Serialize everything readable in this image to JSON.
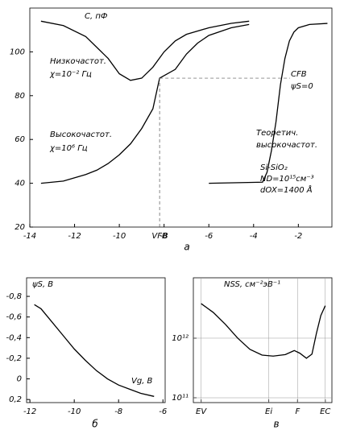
{
  "chart_data": [
    {
      "type": "line",
      "panel_label": "а",
      "y_label": "C, пФ",
      "xlim": [
        -14,
        -0.5
      ],
      "ylim": [
        20,
        120
      ],
      "xticks": [
        -14,
        -12,
        -10,
        -8,
        -6,
        -4,
        -2
      ],
      "yticks": [
        20,
        40,
        60,
        80,
        100
      ],
      "annotations": [
        "Низкочастот.",
        "χ=10⁻² Гц",
        "Высокочастот.",
        "χ=10⁶ Гц",
        "Теоретич.",
        "высокочастот.",
        "Si-SiO₂",
        "ND=10¹⁵см⁻³",
        "dOX=1400 Å"
      ],
      "flat_band": {
        "x": -8.2,
        "y": 88,
        "x_label": "VFB",
        "y_label": "CFB",
        "note": "ψS=0"
      },
      "series": [
        {
          "color": "#000000",
          "x": [
            -13.5,
            -12.5,
            -11.5,
            -10.5,
            -10,
            -9.5,
            -9,
            -8.5,
            -8,
            -7.5,
            -7,
            -6,
            -5,
            -4.2
          ],
          "values": [
            114,
            112,
            107,
            97,
            90,
            87,
            88,
            93,
            100,
            105,
            108,
            111,
            113,
            114
          ]
        },
        {
          "color": "#000000",
          "x": [
            -13.5,
            -12.5,
            -11.5,
            -11,
            -10.5,
            -10,
            -9.5,
            -9,
            -8.5,
            -8.2,
            -7.5,
            -7,
            -6.5,
            -6,
            -5,
            -4.2
          ],
          "values": [
            40,
            41,
            44,
            46,
            49,
            53,
            58,
            65,
            74,
            88,
            92,
            99,
            104,
            107.5,
            111,
            112.5
          ]
        },
        {
          "color": "#000000",
          "x": [
            -6,
            -3.6,
            -3.4,
            -3.2,
            -3,
            -2.8,
            -2.6,
            -2.4,
            -2.2,
            -2,
            -1.5,
            -0.7
          ],
          "values": [
            40,
            40.5,
            45,
            55,
            68,
            85,
            97,
            105,
            109,
            111,
            112.5,
            113
          ]
        }
      ]
    },
    {
      "type": "line",
      "panel_label": "б",
      "y_label": "ψS, В",
      "x_label": "Vg, В",
      "xlim": [
        -12.15,
        -5.9
      ],
      "ylim": [
        0.23,
        -0.98
      ],
      "xticks": [
        -12,
        -10,
        -8,
        -6
      ],
      "yticks": [
        {
          "value": -0.8,
          "label": "-0,8"
        },
        {
          "value": -0.6,
          "label": "-0,6"
        },
        {
          "value": -0.4,
          "label": "-0,4"
        },
        {
          "value": -0.2,
          "label": "-0,2"
        },
        0,
        {
          "value": 0.2,
          "label": "0,2"
        }
      ],
      "series": [
        {
          "color": "#000000",
          "x": [
            -11.8,
            -11.5,
            -11,
            -10.5,
            -10,
            -9.5,
            -9,
            -8.5,
            -8,
            -7.5,
            -7,
            -6.4
          ],
          "values": [
            -0.72,
            -0.68,
            -0.55,
            -0.42,
            -0.29,
            -0.18,
            -0.08,
            0.0,
            0.06,
            0.1,
            0.14,
            0.17
          ]
        }
      ]
    },
    {
      "type": "line",
      "panel_label": "в",
      "y_label": "NSS, см⁻²эВ⁻¹",
      "log_y": true,
      "grid": true,
      "xlim": [
        -0.07,
        1.18
      ],
      "ylim": [
        83000000000,
        10300000000000
      ],
      "xticks": [
        {
          "value": 0,
          "label": "EV"
        },
        {
          "value": 0.61,
          "label": "Ei"
        },
        {
          "value": 0.87,
          "label": "F"
        },
        {
          "value": 1.12,
          "label": "EC"
        }
      ],
      "yticks": [
        {
          "value": 100000000000,
          "label": "10¹¹"
        },
        {
          "value": 1000000000000,
          "label": "10¹²"
        }
      ],
      "series": [
        {
          "color": "#000000",
          "x": [
            0,
            0.11,
            0.22,
            0.33,
            0.44,
            0.55,
            0.65,
            0.76,
            0.84,
            0.89,
            0.95,
            1.0,
            1.04,
            1.08,
            1.12
          ],
          "values": [
            3800000000000,
            2700000000000,
            1700000000000,
            1000000000000,
            650000000000,
            520000000000,
            500000000000,
            530000000000,
            620000000000,
            560000000000,
            460000000000,
            540000000000,
            1200000000000,
            2400000000000,
            3500000000000
          ]
        }
      ]
    }
  ]
}
